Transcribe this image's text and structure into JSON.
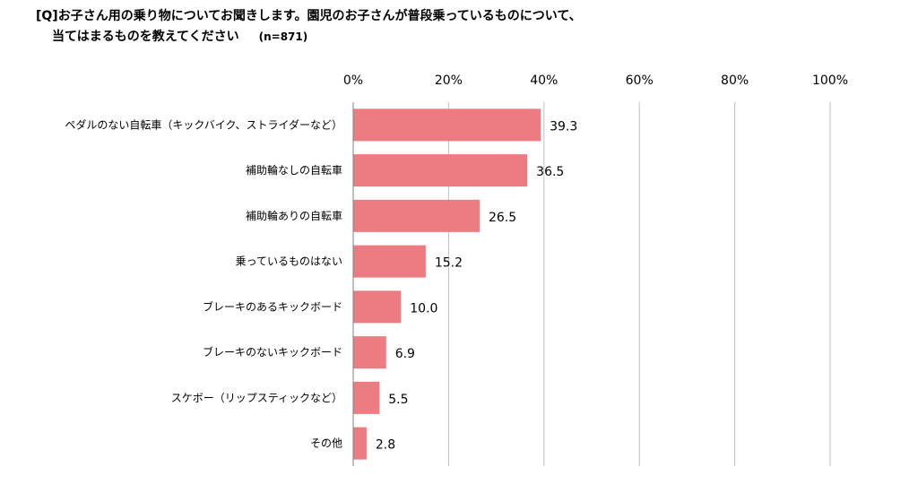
{
  "title": {
    "line1": "[Q]お子さん用の乗り物についてお聞きします。園児のお子さんが普段乗っているものについて、",
    "line2": "当てはまるものを教えてください",
    "n": "(n=871)"
  },
  "chart_data": {
    "type": "bar",
    "orientation": "horizontal",
    "categories": [
      "ペダルのない自転車（キックバイク、ストライダーなど）",
      "補助輪なしの自転車",
      "補助輪ありの自転車",
      "乗っているものはない",
      "ブレーキのあるキックボード",
      "ブレーキのないキックボード",
      "スケボー（リップスティックなど）",
      "その他"
    ],
    "values": [
      39.3,
      36.5,
      26.5,
      15.2,
      10.0,
      6.9,
      5.5,
      2.8
    ],
    "value_labels": [
      "39.3",
      "36.5",
      "26.5",
      "15.2",
      "10.0",
      "6.9",
      "5.5",
      "2.8"
    ],
    "xlim": [
      0,
      100
    ],
    "xticks": [
      0,
      20,
      40,
      60,
      80,
      100
    ],
    "xtick_labels": [
      "0%",
      "20%",
      "40%",
      "60%",
      "80%",
      "100%"
    ],
    "grid": true,
    "axis_position": "top",
    "colors": {
      "bar": "#ec7b82",
      "grid": "#bfbfbf",
      "axis": "#808080"
    }
  }
}
